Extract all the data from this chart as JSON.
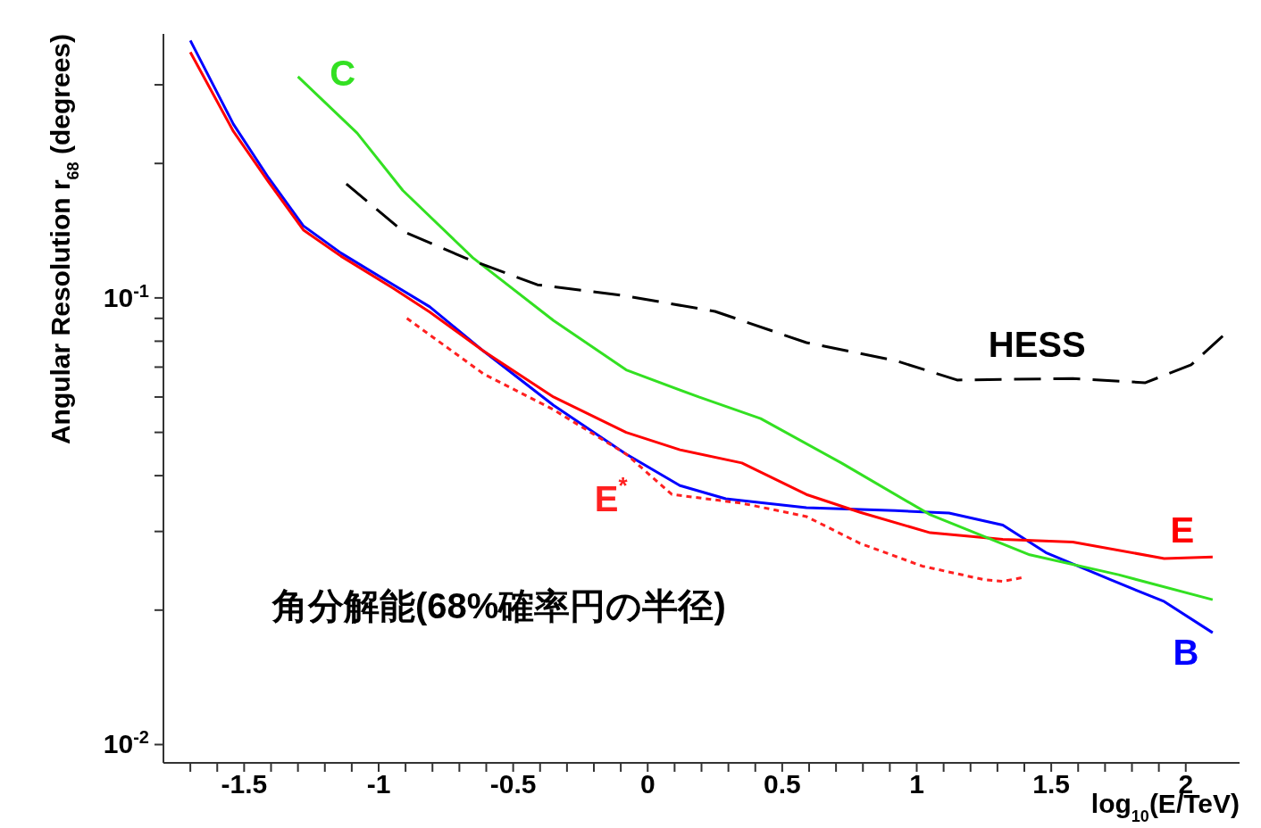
{
  "chart_data": {
    "type": "line",
    "xlabel": "log$_{10}$(E/TeV)",
    "ylabel": "Angular Resolution r$_{68}$ (degrees)",
    "log": "y",
    "grid": false,
    "marker": "none",
    "xlim": [
      -1.8,
      2.2
    ],
    "ylim": [
      0.0091,
      0.39
    ],
    "xticks": [
      -1.5,
      -1,
      -0.5,
      0,
      0.5,
      1,
      1.5,
      2,
      {
        "value": -1.7,
        "label": null
      },
      {
        "value": -1.6,
        "label": null
      },
      {
        "value": -1.4,
        "label": null
      },
      {
        "value": -1.3,
        "label": null
      },
      {
        "value": -1.2,
        "label": null
      },
      {
        "value": -1.1,
        "label": null
      },
      {
        "value": -0.9,
        "label": null
      },
      {
        "value": -0.8,
        "label": null
      },
      {
        "value": -0.7,
        "label": null
      },
      {
        "value": -0.6,
        "label": null
      },
      {
        "value": -0.4,
        "label": null
      },
      {
        "value": -0.3,
        "label": null
      },
      {
        "value": -0.2,
        "label": null
      },
      {
        "value": -0.1,
        "label": null
      },
      {
        "value": 0.1,
        "label": null
      },
      {
        "value": 0.2,
        "label": null
      },
      {
        "value": 0.3,
        "label": null
      },
      {
        "value": 0.4,
        "label": null
      },
      {
        "value": 0.6,
        "label": null
      },
      {
        "value": 0.7,
        "label": null
      },
      {
        "value": 0.8,
        "label": null
      },
      {
        "value": 0.9,
        "label": null
      },
      {
        "value": 1.1,
        "label": null
      },
      {
        "value": 1.2,
        "label": null
      },
      {
        "value": 1.3,
        "label": null
      },
      {
        "value": 1.4,
        "label": null
      },
      {
        "value": 1.6,
        "label": null
      },
      {
        "value": 1.7,
        "label": null
      },
      {
        "value": 1.8,
        "label": null
      },
      {
        "value": 1.9,
        "label": null
      }
    ],
    "yticks": [
      {
        "value": 0.01,
        "label": "10$^{-2}$"
      },
      {
        "value": 0.1,
        "label": "10$^{-1}$"
      },
      {
        "value": 0.02,
        "label": null
      },
      {
        "value": 0.03,
        "label": null
      },
      {
        "value": 0.04,
        "label": null
      },
      {
        "value": 0.05,
        "label": null
      },
      {
        "value": 0.06,
        "label": null
      },
      {
        "value": 0.07,
        "label": null
      },
      {
        "value": 0.08,
        "label": null
      },
      {
        "value": 0.09,
        "label": null
      },
      {
        "value": 0.2,
        "label": null
      },
      {
        "value": 0.3,
        "label": null
      }
    ],
    "annotations": [
      "角分解能(68%確率円の半径)"
    ],
    "series": [
      {
        "name": "B",
        "color": "#0000ff",
        "x": [
          -1.7,
          -1.54,
          -1.41,
          -1.28,
          -1.14,
          -0.945,
          -0.81,
          -0.61,
          -0.35,
          -0.08,
          0.12,
          0.29,
          0.59,
          0.92,
          1.12,
          1.32,
          1.48,
          1.72,
          1.92,
          2.1
        ],
        "values": [
          0.377,
          0.245,
          0.186,
          0.145,
          0.126,
          0.107,
          0.0955,
          0.076,
          0.0575,
          0.0447,
          0.038,
          0.0355,
          0.0339,
          0.0334,
          0.033,
          0.031,
          0.0269,
          0.0234,
          0.0209,
          0.0178
        ]
      },
      {
        "name": "E",
        "color": "#ff0000",
        "x": [
          -1.7,
          -1.54,
          -1.41,
          -1.28,
          -1.14,
          -0.945,
          -0.81,
          -0.61,
          -0.35,
          -0.08,
          0.12,
          0.35,
          0.59,
          0.79,
          1.05,
          1.32,
          1.58,
          1.92,
          2.1
        ],
        "values": [
          0.355,
          0.236,
          0.182,
          0.142,
          0.124,
          0.105,
          0.093,
          0.076,
          0.06,
          0.05,
          0.0457,
          0.0427,
          0.0363,
          0.0331,
          0.0298,
          0.0288,
          0.0284,
          0.0261,
          0.0263
        ]
      },
      {
        "name": "C",
        "color": "#33e022",
        "x": [
          -1.3,
          -1.08,
          -0.91,
          -0.65,
          -0.35,
          -0.08,
          0.19,
          0.42,
          0.72,
          1.05,
          1.42,
          1.75,
          2.1
        ],
        "values": [
          0.313,
          0.234,
          0.174,
          0.123,
          0.089,
          0.069,
          0.06,
          0.0537,
          0.0427,
          0.0327,
          0.0266,
          0.024,
          0.0211
        ]
      },
      {
        "name": "HESS",
        "color": "#000000",
        "line_style": "dashed",
        "x": [
          -1.12,
          -0.91,
          -0.68,
          -0.41,
          -0.08,
          0.25,
          0.59,
          0.92,
          1.15,
          1.58,
          1.85,
          2.02,
          2.14
        ],
        "values": [
          0.18,
          0.141,
          0.123,
          0.107,
          0.101,
          0.0933,
          0.0794,
          0.0724,
          0.0655,
          0.066,
          0.0646,
          0.0708,
          0.0824
        ]
      },
      {
        "name": "E$^{*}$",
        "color": "#ff2020",
        "line_style": "dotted",
        "x": [
          -0.895,
          -0.61,
          -0.35,
          -0.08,
          0.09,
          0.35,
          0.59,
          0.79,
          1.02,
          1.25,
          1.32,
          1.4
        ],
        "values": [
          0.09,
          0.0676,
          0.0562,
          0.0447,
          0.0363,
          0.0347,
          0.0324,
          0.0282,
          0.0251,
          0.0234,
          0.0232,
          0.0237
        ]
      }
    ]
  }
}
